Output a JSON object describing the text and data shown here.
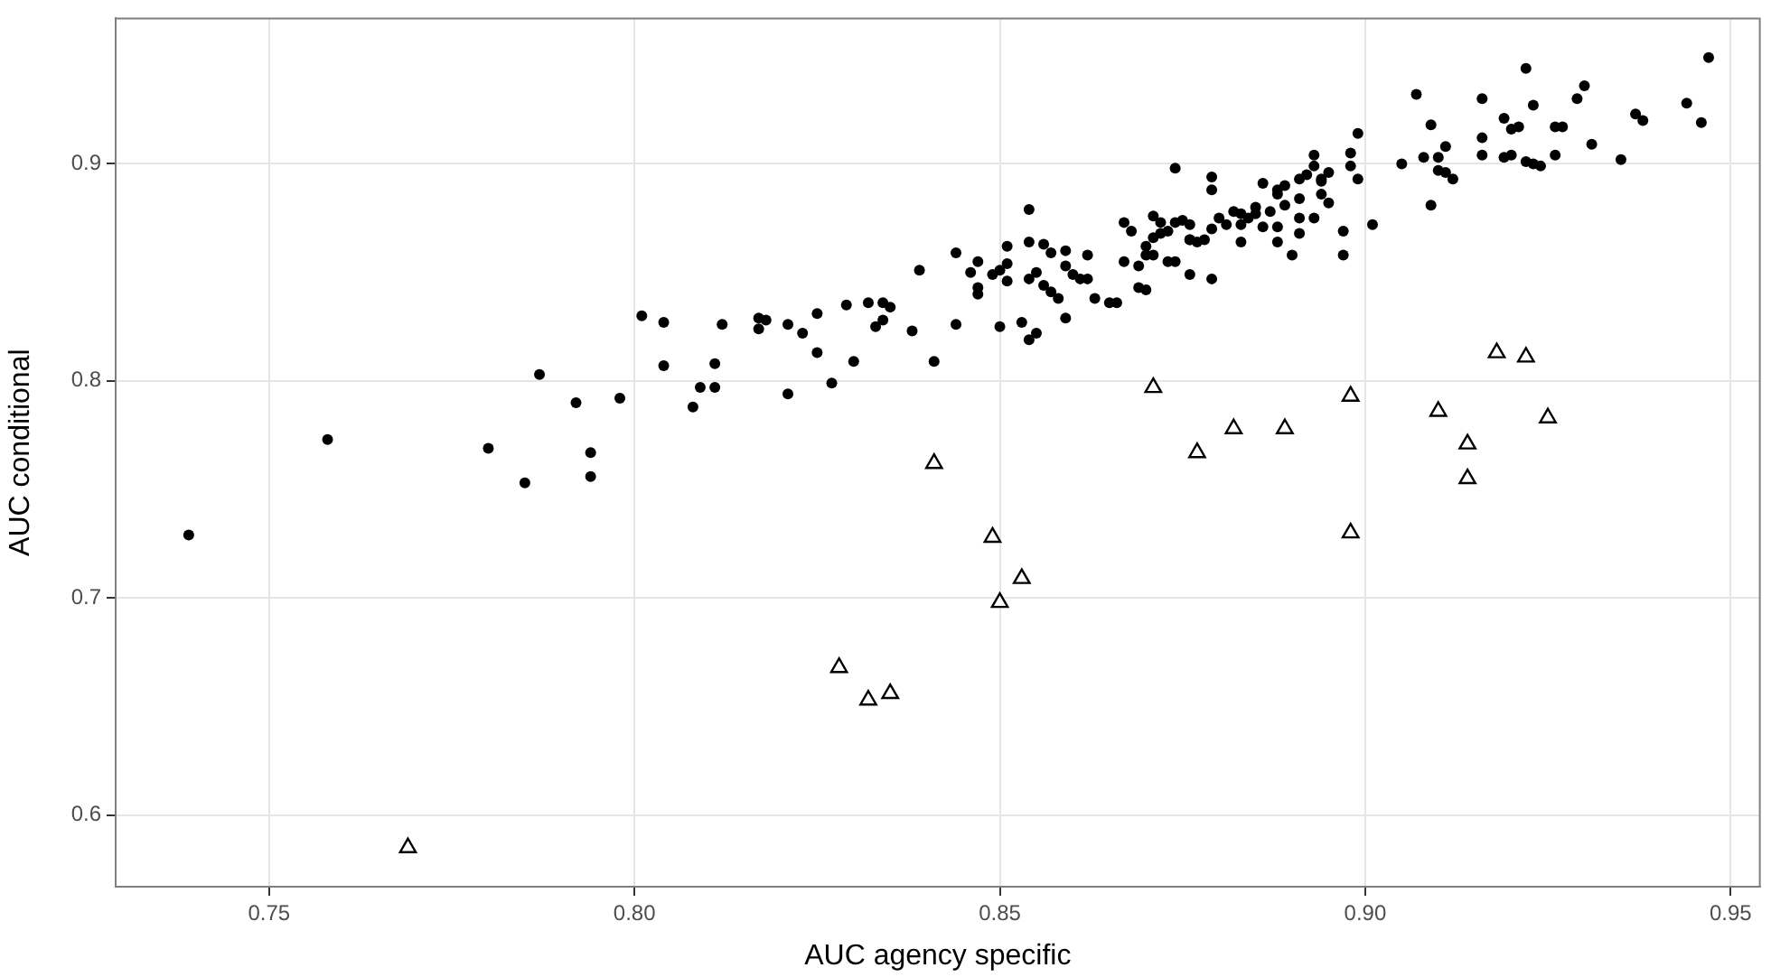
{
  "chart_data": {
    "type": "scatter",
    "xlabel": "AUC agency specific",
    "ylabel": "AUC conditional",
    "xlim": [
      0.729,
      0.954
    ],
    "ylim": [
      0.567,
      0.967
    ],
    "xticks": [
      {
        "value": 0.75,
        "label": "0.75"
      },
      {
        "value": 0.8,
        "label": "0.80"
      },
      {
        "value": 0.85,
        "label": "0.85"
      },
      {
        "value": 0.9,
        "label": "0.90"
      },
      {
        "value": 0.95,
        "label": "0.95"
      }
    ],
    "yticks": [
      0.6,
      0.7,
      0.8,
      0.9
    ],
    "grid": true,
    "legend": false,
    "series": [
      {
        "color": "#000000",
        "marker": "circle",
        "x": [
          0.739,
          0.758,
          0.78,
          0.785,
          0.794,
          0.794,
          0.787,
          0.792,
          0.798,
          0.801,
          0.804,
          0.804,
          0.812,
          0.811,
          0.809,
          0.811,
          0.808,
          0.817,
          0.818,
          0.817,
          0.821,
          0.823,
          0.825,
          0.825,
          0.821,
          0.827,
          0.829,
          0.83,
          0.832,
          0.834,
          0.835,
          0.834,
          0.833,
          0.838,
          0.839,
          0.841,
          0.844,
          0.844,
          0.846,
          0.847,
          0.847,
          0.847,
          0.849,
          0.85,
          0.851,
          0.851,
          0.85,
          0.851,
          0.853,
          0.854,
          0.855,
          0.854,
          0.854,
          0.856,
          0.855,
          0.854,
          0.856,
          0.857,
          0.858,
          0.859,
          0.857,
          0.859,
          0.859,
          0.86,
          0.861,
          0.862,
          0.862,
          0.863,
          0.865,
          0.866,
          0.867,
          0.868,
          0.867,
          0.869,
          0.869,
          0.87,
          0.871,
          0.872,
          0.871,
          0.87,
          0.87,
          0.871,
          0.872,
          0.873,
          0.874,
          0.875,
          0.876,
          0.873,
          0.874,
          0.876,
          0.874,
          0.876,
          0.877,
          0.879,
          0.879,
          0.88,
          0.881,
          0.879,
          0.876,
          0.878,
          0.879,
          0.882,
          0.883,
          0.883,
          0.883,
          0.884,
          0.885,
          0.885,
          0.886,
          0.886,
          0.887,
          0.888,
          0.888,
          0.889,
          0.888,
          0.888,
          0.89,
          0.889,
          0.891,
          0.891,
          0.892,
          0.891,
          0.891,
          0.893,
          0.893,
          0.893,
          0.894,
          0.894,
          0.894,
          0.895,
          0.895,
          0.897,
          0.897,
          0.898,
          0.898,
          0.899,
          0.899,
          0.901,
          0.905,
          0.907,
          0.908,
          0.909,
          0.91,
          0.909,
          0.91,
          0.911,
          0.911,
          0.912,
          0.916,
          0.916,
          0.916,
          0.919,
          0.919,
          0.92,
          0.92,
          0.921,
          0.922,
          0.923,
          0.922,
          0.923,
          0.924,
          0.926,
          0.927,
          0.926,
          0.929,
          0.93,
          0.931,
          0.935,
          0.937,
          0.938,
          0.944,
          0.946,
          0.947
        ],
        "values": [
          0.729,
          0.773,
          0.769,
          0.753,
          0.767,
          0.756,
          0.803,
          0.79,
          0.792,
          0.83,
          0.827,
          0.807,
          0.826,
          0.808,
          0.797,
          0.797,
          0.788,
          0.829,
          0.828,
          0.824,
          0.826,
          0.822,
          0.831,
          0.813,
          0.794,
          0.799,
          0.835,
          0.809,
          0.836,
          0.836,
          0.834,
          0.828,
          0.825,
          0.823,
          0.851,
          0.809,
          0.859,
          0.826,
          0.85,
          0.855,
          0.843,
          0.84,
          0.849,
          0.825,
          0.862,
          0.854,
          0.851,
          0.846,
          0.827,
          0.819,
          0.822,
          0.879,
          0.864,
          0.863,
          0.85,
          0.847,
          0.844,
          0.841,
          0.838,
          0.829,
          0.859,
          0.86,
          0.853,
          0.849,
          0.847,
          0.847,
          0.858,
          0.838,
          0.836,
          0.836,
          0.873,
          0.869,
          0.855,
          0.853,
          0.843,
          0.842,
          0.876,
          0.873,
          0.866,
          0.862,
          0.858,
          0.858,
          0.868,
          0.869,
          0.873,
          0.874,
          0.872,
          0.855,
          0.855,
          0.849,
          0.898,
          0.865,
          0.864,
          0.888,
          0.894,
          0.875,
          0.872,
          0.87,
          0.865,
          0.865,
          0.847,
          0.878,
          0.877,
          0.872,
          0.864,
          0.875,
          0.877,
          0.88,
          0.891,
          0.871,
          0.878,
          0.886,
          0.888,
          0.89,
          0.871,
          0.864,
          0.858,
          0.881,
          0.884,
          0.893,
          0.895,
          0.875,
          0.868,
          0.875,
          0.904,
          0.899,
          0.893,
          0.892,
          0.886,
          0.882,
          0.896,
          0.869,
          0.858,
          0.905,
          0.899,
          0.914,
          0.893,
          0.872,
          0.9,
          0.932,
          0.903,
          0.918,
          0.903,
          0.881,
          0.897,
          0.896,
          0.908,
          0.893,
          0.93,
          0.912,
          0.904,
          0.921,
          0.903,
          0.904,
          0.916,
          0.917,
          0.944,
          0.927,
          0.901,
          0.9,
          0.899,
          0.917,
          0.917,
          0.904,
          0.93,
          0.936,
          0.909,
          0.902,
          0.923,
          0.92,
          0.928,
          0.919,
          0.949
        ]
      },
      {
        "color": "#000000",
        "marker": "triangle",
        "x": [
          0.769,
          0.841,
          0.849,
          0.853,
          0.85,
          0.828,
          0.832,
          0.835,
          0.877,
          0.918,
          0.922,
          0.898,
          0.91,
          0.925,
          0.882,
          0.889,
          0.914,
          0.914,
          0.898,
          0.871
        ],
        "values": [
          0.585,
          0.762,
          0.728,
          0.709,
          0.698,
          0.668,
          0.653,
          0.656,
          0.767,
          0.813,
          0.811,
          0.793,
          0.786,
          0.783,
          0.778,
          0.778,
          0.771,
          0.755,
          0.73,
          0.797
        ]
      }
    ]
  }
}
